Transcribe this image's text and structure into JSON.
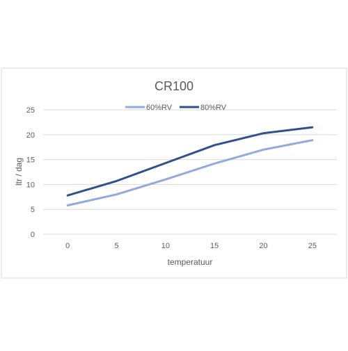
{
  "chart_data": {
    "type": "line",
    "title": "CR100",
    "xlabel": "temperatuur",
    "ylabel": "ltr / dag",
    "x": [
      0,
      5,
      10,
      15,
      20,
      25
    ],
    "ylim": [
      0,
      25
    ],
    "yticks": [
      0,
      5,
      10,
      15,
      20,
      25
    ],
    "grid": true,
    "legend_position": "top",
    "series": [
      {
        "name": "60%RV",
        "color": "#8faadc",
        "values": [
          5.8,
          8.0,
          11.0,
          14.2,
          17.0,
          18.9
        ]
      },
      {
        "name": "80%RV",
        "color": "#2f4f8f",
        "values": [
          7.8,
          10.7,
          14.3,
          17.9,
          20.3,
          21.5
        ]
      }
    ]
  }
}
